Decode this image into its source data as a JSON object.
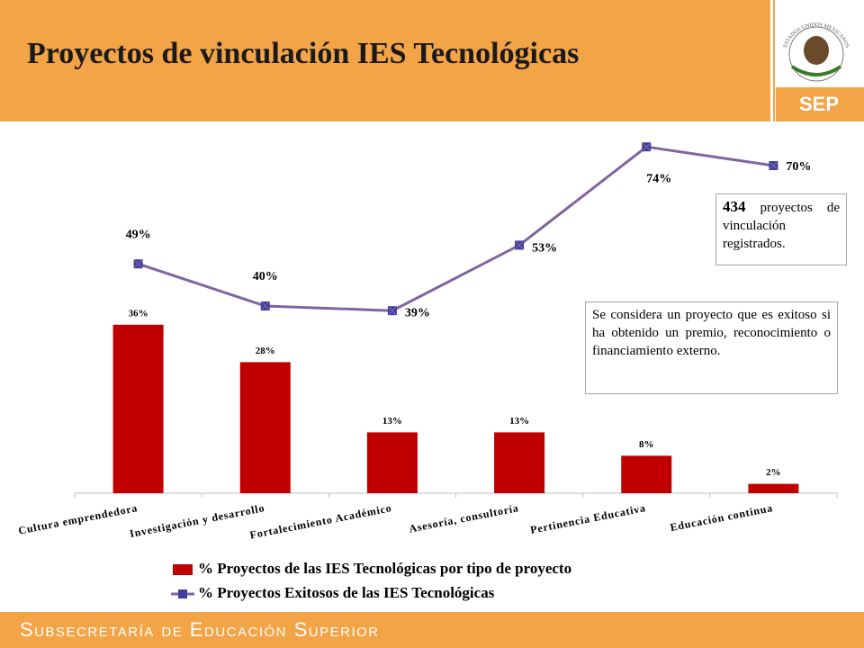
{
  "header": {
    "title": "Proyectos de vinculación IES Tecnológicas"
  },
  "logo": {
    "emblem_text": "ESTADOS UNIDOS MEXICANOS",
    "text": "SEP"
  },
  "footer": {
    "text": "Subsecretaría de Educación Superior"
  },
  "boxes": [
    {
      "number": "434",
      "text": "proyectos de vinculación registrados."
    },
    {
      "text": "Se considera un proyecto que es exitoso si ha obtenido un premio, reconocimiento o financiamiento externo."
    }
  ],
  "chart_data": {
    "type": "bar_line",
    "categories": [
      "Cultura emprendedora",
      "Investigación y desarrollo",
      "Fortalecimiento Académico",
      "Asesoría, consultoría",
      "Pertinencia Educativa",
      "Educación continua"
    ],
    "series": [
      {
        "name": "% Proyectos de las IES Tecnológicas por tipo de proyecto",
        "type": "bar",
        "color": "#c00000",
        "values": [
          36,
          28,
          13,
          13,
          8,
          2
        ],
        "value_labels": [
          "36%",
          "28%",
          "13%",
          "13%",
          "8%",
          "2%"
        ]
      },
      {
        "name": "% Proyectos Exitosos de las IES Tecnológicas",
        "type": "line",
        "color": "#8064a2",
        "marker_color": "#3f3fa0",
        "values": [
          49,
          40,
          39,
          53,
          74,
          70
        ],
        "value_labels": [
          "49%",
          "40%",
          "39%",
          "53%",
          "74%",
          "70%"
        ]
      }
    ],
    "ylim": [
      0,
      80
    ]
  }
}
